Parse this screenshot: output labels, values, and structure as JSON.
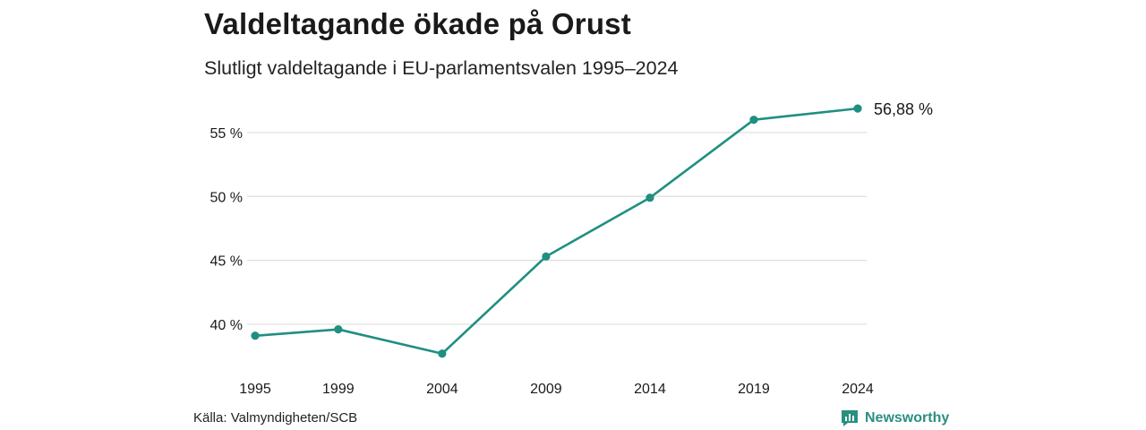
{
  "header": {
    "title": "Valdeltagande ökade på Orust",
    "subtitle": "Slutligt valdeltagande i EU-parlamentsvalen 1995–2024"
  },
  "footer": {
    "source": "Källa: Valmyndigheten/SCB",
    "brand": "Newsworthy"
  },
  "colors": {
    "line": "#1f8f82",
    "grid": "#dedede",
    "brand": "#2a8f80"
  },
  "chart_data": {
    "type": "line",
    "title": "Valdeltagande ökade på Orust",
    "subtitle": "Slutligt valdeltagande i EU-parlamentsvalen 1995–2024",
    "xlabel": "",
    "ylabel": "",
    "x": [
      "1995",
      "1999",
      "2004",
      "2009",
      "2014",
      "2019",
      "2024"
    ],
    "series": [
      {
        "values": [
          39.1,
          39.6,
          37.7,
          45.3,
          49.9,
          56.0,
          56.88
        ]
      }
    ],
    "y_ticks": [
      40,
      45,
      50,
      55
    ],
    "y_tick_labels": [
      "40 %",
      "45 %",
      "50 %",
      "55 %"
    ],
    "ylim": [
      36.8,
      57.0
    ],
    "end_label": "56,88 %",
    "grid": true,
    "legend": "none"
  }
}
